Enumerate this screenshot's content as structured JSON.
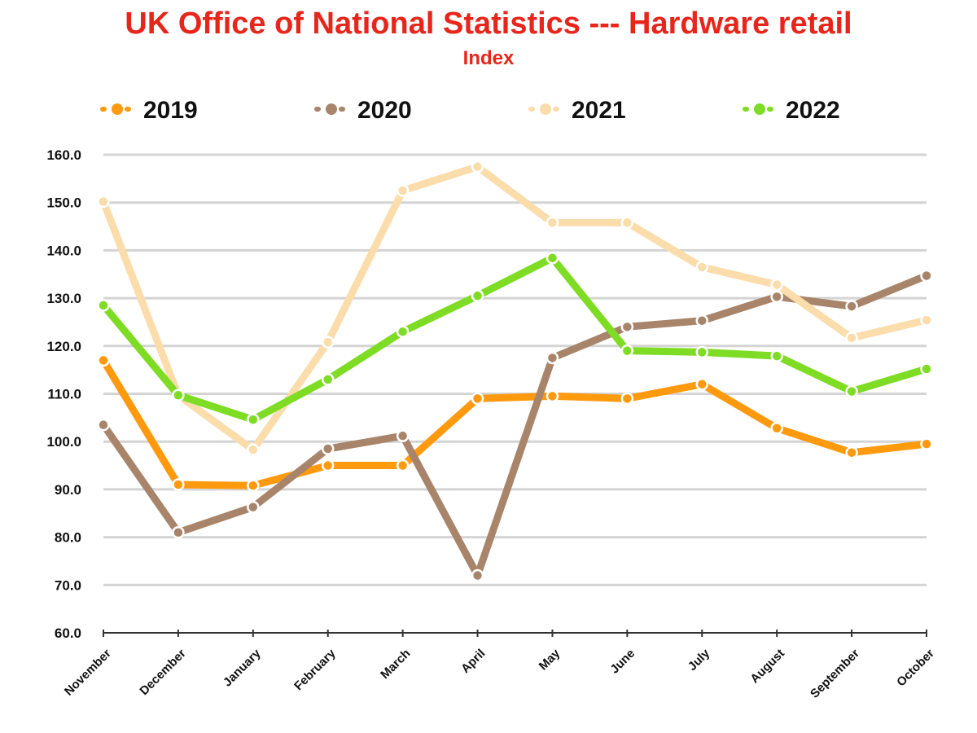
{
  "chart_data": {
    "type": "line",
    "title": "UK Office of National Statistics --- Hardware retail",
    "subtitle": "Index",
    "xlabel": "",
    "ylabel": "",
    "ylim": [
      60,
      160
    ],
    "yticks": [
      "60.0",
      "70.0",
      "80.0",
      "90.0",
      "100.0",
      "110.0",
      "120.0",
      "130.0",
      "140.0",
      "150.0",
      "160.0"
    ],
    "grid": true,
    "legend_position": "top",
    "categories": [
      "November",
      "December",
      "January",
      "February",
      "March",
      "April",
      "May",
      "June",
      "July",
      "August",
      "September",
      "October"
    ],
    "series": [
      {
        "name": "2019",
        "color": "#ff9a0e",
        "values": [
          117.0,
          91.0,
          90.8,
          95.0,
          95.0,
          109.0,
          109.5,
          109.0,
          112.0,
          102.8,
          97.7,
          99.5
        ]
      },
      {
        "name": "2020",
        "color": "#a8856a",
        "values": [
          103.5,
          81.0,
          86.3,
          98.5,
          101.2,
          72.0,
          117.5,
          124.0,
          125.3,
          130.3,
          128.3,
          134.7
        ]
      },
      {
        "name": "2021",
        "color": "#fbdcab",
        "values": [
          150.2,
          109.7,
          98.3,
          120.8,
          152.5,
          157.5,
          145.8,
          145.8,
          136.5,
          132.8,
          121.7,
          125.4
        ]
      },
      {
        "name": "2022",
        "color": "#7ddc23",
        "values": [
          128.5,
          109.7,
          104.6,
          113.0,
          123.0,
          130.5,
          138.4,
          119.0,
          118.7,
          117.9,
          110.5,
          115.2
        ]
      }
    ]
  }
}
